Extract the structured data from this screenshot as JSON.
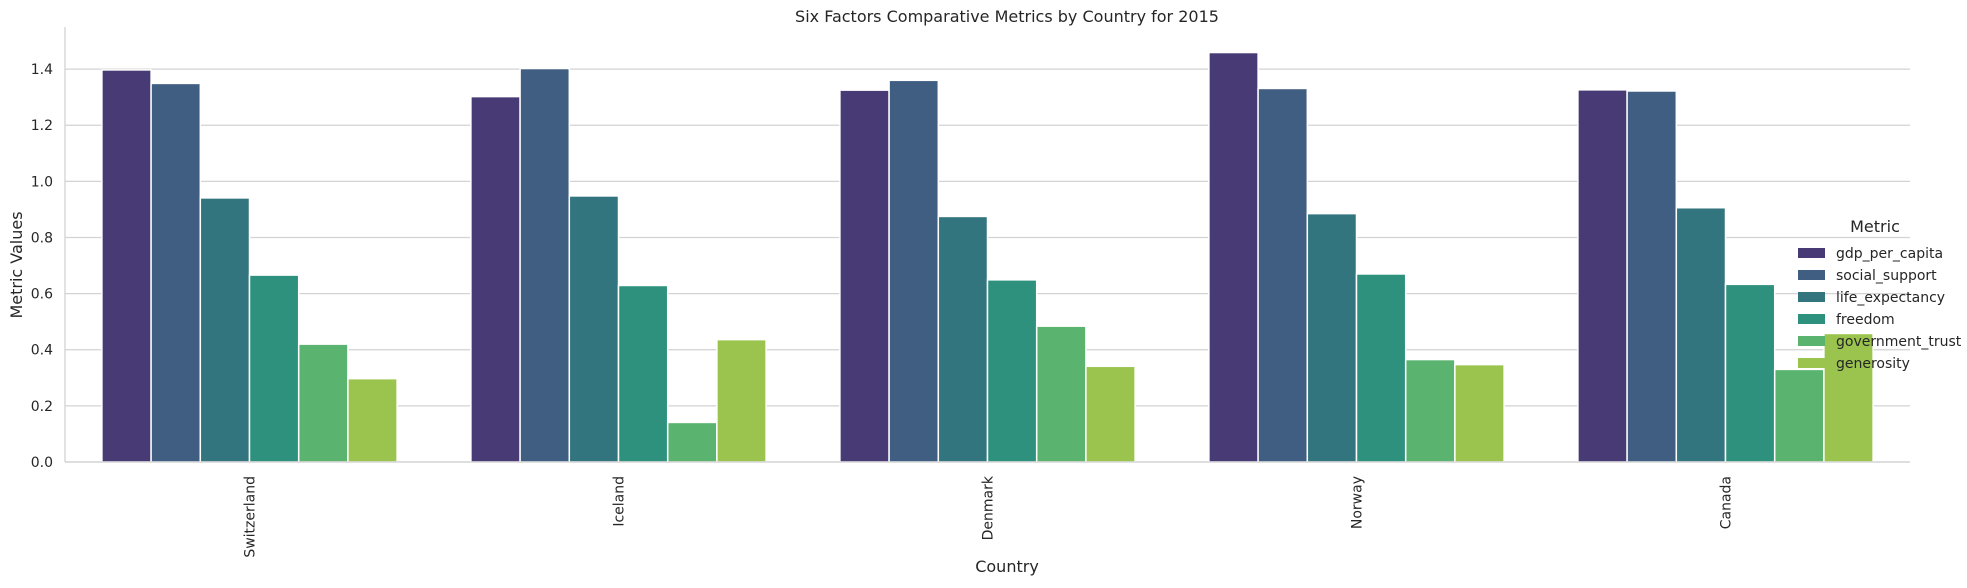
{
  "chart_data": {
    "type": "bar",
    "title": "Six Factors Comparative Metrics by Country for 2015",
    "xlabel": "Country",
    "ylabel": "Metric Values",
    "ylim": [
      0,
      1.55
    ],
    "yticks": [
      "0.0",
      "0.2",
      "0.4",
      "0.6",
      "0.8",
      "1.0",
      "1.2",
      "1.4"
    ],
    "grid": "horizontal",
    "legend": {
      "title": "Metric",
      "placement": "right"
    },
    "categories": [
      "Switzerland",
      "Iceland",
      "Denmark",
      "Norway",
      "Canada"
    ],
    "series": [
      {
        "name": "gdp_per_capita",
        "color": "#483a74",
        "values": [
          1.397,
          1.302,
          1.325,
          1.459,
          1.326
        ]
      },
      {
        "name": "social_support",
        "color": "#3f5e82",
        "values": [
          1.349,
          1.402,
          1.36,
          1.331,
          1.322
        ]
      },
      {
        "name": "life_expectancy",
        "color": "#33757f",
        "values": [
          0.941,
          0.948,
          0.875,
          0.885,
          0.906
        ]
      },
      {
        "name": "freedom",
        "color": "#2e917e",
        "values": [
          0.666,
          0.629,
          0.649,
          0.67,
          0.633
        ]
      },
      {
        "name": "government_trust",
        "color": "#5bb370",
        "values": [
          0.42,
          0.141,
          0.484,
          0.365,
          0.33
        ]
      },
      {
        "name": "generosity",
        "color": "#9ac44e",
        "values": [
          0.297,
          0.436,
          0.341,
          0.347,
          0.458
        ]
      }
    ]
  }
}
